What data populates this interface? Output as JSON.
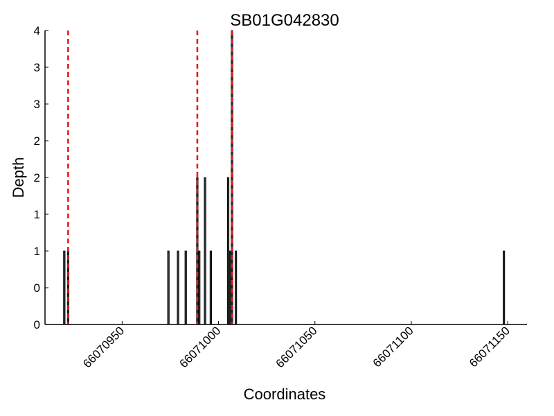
{
  "chart_data": {
    "type": "bar",
    "title": "SB01G042830",
    "xlabel": "Coordinates",
    "ylabel": "Depth",
    "xlim": [
      66070910,
      66071160
    ],
    "ylim": [
      0,
      4
    ],
    "y_ticks": [
      0,
      0.5,
      1,
      1.5,
      2,
      2.5,
      3,
      3.5,
      4
    ],
    "y_tick_labels": [
      "0",
      "0",
      "1",
      "1",
      "2",
      "2",
      "3",
      "3",
      "4"
    ],
    "x_ticks": [
      66070950,
      66071000,
      66071050,
      66071100,
      66071150
    ],
    "x_tick_labels": [
      "66070950",
      "66071000",
      "66071050",
      "66071100",
      "66071150"
    ],
    "grid": false,
    "bars": [
      {
        "x": 66070920,
        "value": 1
      },
      {
        "x": 66070922,
        "value": 1
      },
      {
        "x": 66070974,
        "value": 1
      },
      {
        "x": 66070979,
        "value": 1
      },
      {
        "x": 66070983,
        "value": 1
      },
      {
        "x": 66070989,
        "value": 2
      },
      {
        "x": 66070990,
        "value": 1
      },
      {
        "x": 66070993,
        "value": 2
      },
      {
        "x": 66070996,
        "value": 1
      },
      {
        "x": 66071005,
        "value": 2
      },
      {
        "x": 66071006,
        "value": 1
      },
      {
        "x": 66071007,
        "value": 4
      },
      {
        "x": 66071009,
        "value": 1
      },
      {
        "x": 66071148,
        "value": 1
      }
    ],
    "reference_lines": [
      66070922,
      66070989,
      66071007
    ],
    "colors": {
      "bar_fill": "#333333",
      "bar_edge": "#000000",
      "reference_line": "#e8191c",
      "axis": "#000000"
    }
  }
}
